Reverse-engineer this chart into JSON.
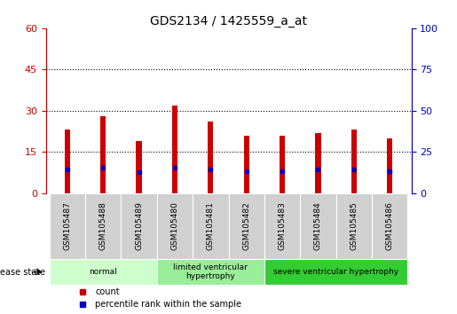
{
  "title": "GDS2134 / 1425559_a_at",
  "samples": [
    "GSM105487",
    "GSM105488",
    "GSM105489",
    "GSM105480",
    "GSM105481",
    "GSM105482",
    "GSM105483",
    "GSM105484",
    "GSM105485",
    "GSM105486"
  ],
  "counts": [
    23,
    28,
    19,
    32,
    26,
    21,
    21,
    22,
    23,
    20
  ],
  "percentile_ranks": [
    14.5,
    15.5,
    13.0,
    15.5,
    14.5,
    13.5,
    13.5,
    14.5,
    14.5,
    13.5
  ],
  "ylim_left": [
    0,
    60
  ],
  "ylim_right": [
    0,
    100
  ],
  "yticks_left": [
    0,
    15,
    30,
    45,
    60
  ],
  "yticks_right": [
    0,
    25,
    50,
    75,
    100
  ],
  "bar_color": "#cc0000",
  "dot_color": "#0000cc",
  "groups": [
    {
      "label": "normal",
      "indices": [
        0,
        1,
        2
      ],
      "color": "#ccffcc"
    },
    {
      "label": "limited ventricular\nhypertrophy",
      "indices": [
        3,
        4,
        5
      ],
      "color": "#99ee99"
    },
    {
      "label": "severe ventricular hypertrophy",
      "indices": [
        6,
        7,
        8,
        9
      ],
      "color": "#33cc33"
    }
  ],
  "group_bg_color": "#d0d0d0",
  "legend_count_color": "#cc0000",
  "legend_dot_color": "#0000cc",
  "dotted_line_color": "#000000",
  "axis_left_color": "#cc0000",
  "axis_right_color": "#0000cc",
  "bar_width": 0.15,
  "grid_yticks": [
    15,
    30,
    45
  ],
  "disease_state_label": "disease state",
  "legend_count_text": "count",
  "legend_pct_text": "percentile rank within the sample"
}
